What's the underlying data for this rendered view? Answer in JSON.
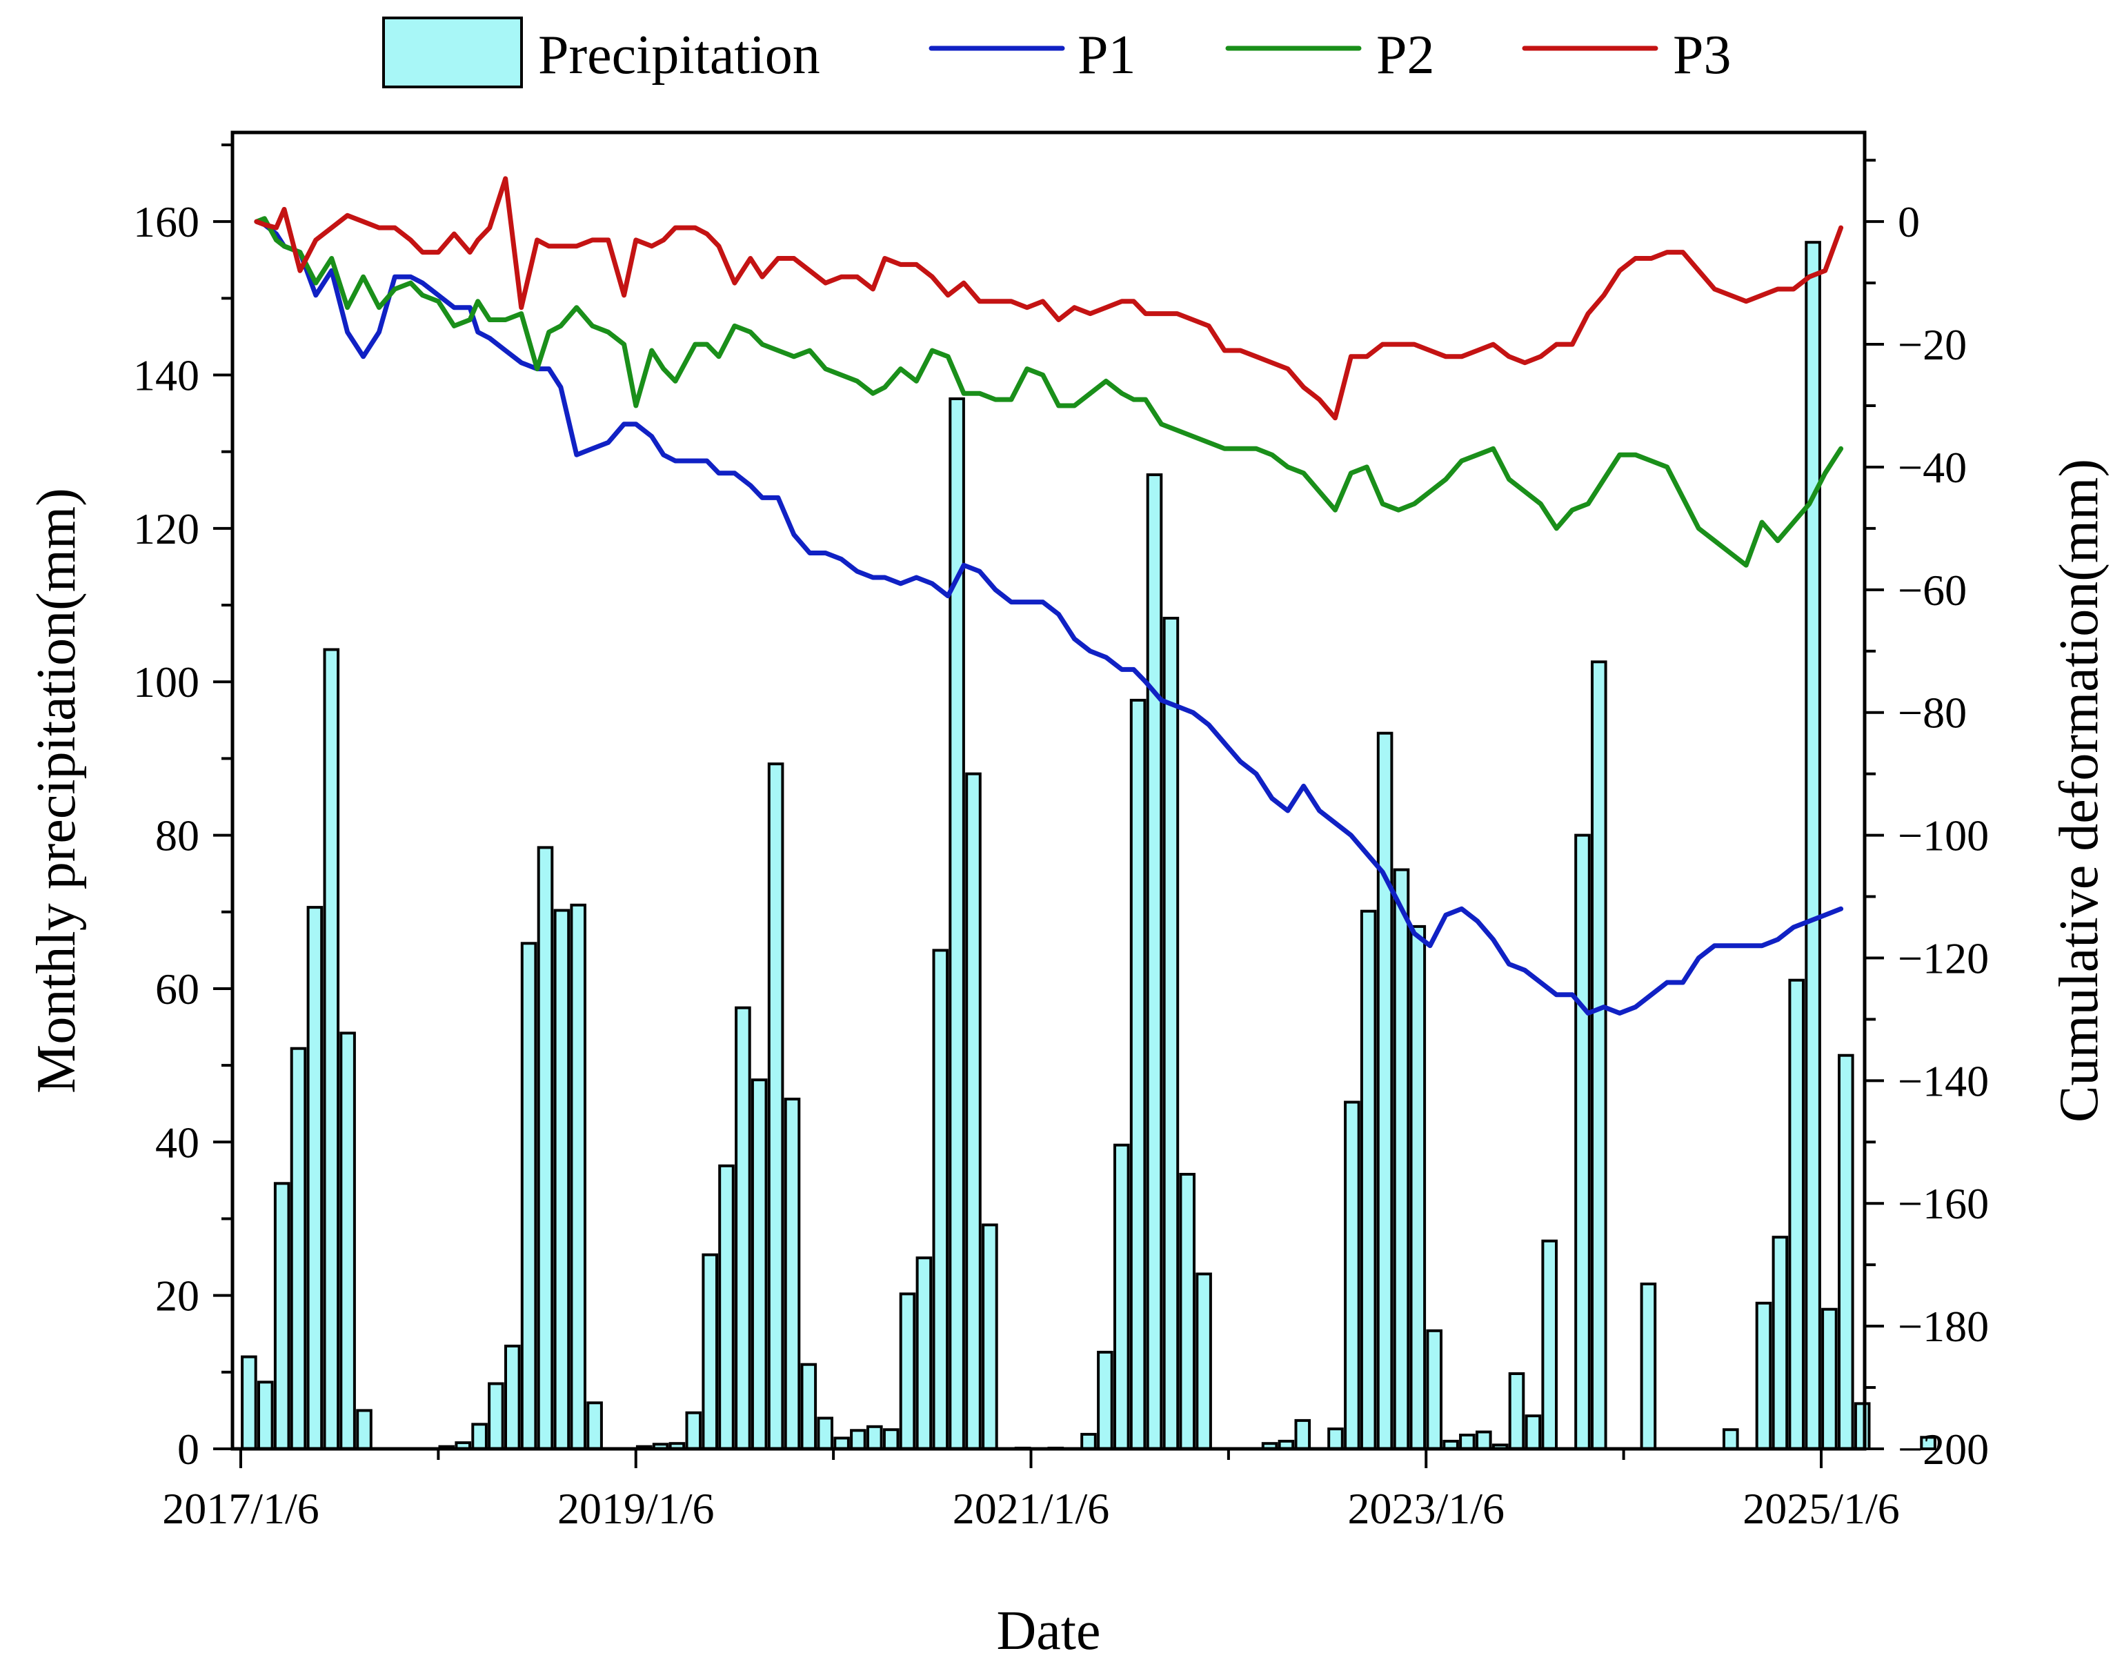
{
  "chart_data": {
    "type": "bar+line",
    "title": "",
    "xlabel": "Date",
    "ylabel_left": "Monthly precipitation(mm)",
    "ylabel_right": "Cumulative deformation(mm)",
    "ylim_left": [
      0,
      170
    ],
    "ylim_right": [
      -200,
      10
    ],
    "x_range_years": [
      2017.0,
      2025.12
    ],
    "x_ticks": [
      {
        "year": 2017.0,
        "label": "2017/1/6"
      },
      {
        "year": 2019.0,
        "label": "2019/1/6"
      },
      {
        "year": 2021.0,
        "label": "2021/1/6"
      },
      {
        "year": 2023.0,
        "label": "2023/1/6"
      },
      {
        "year": 2025.0,
        "label": "2025/1/6"
      }
    ],
    "x_minor_ticks": [
      2018.0,
      2020.0,
      2022.0,
      2024.0
    ],
    "y_left_ticks": [
      0,
      20,
      40,
      60,
      80,
      100,
      120,
      140,
      160
    ],
    "y_left_minor_ticks": [
      10,
      30,
      50,
      70,
      90,
      110,
      130,
      150,
      170
    ],
    "y_right_ticks": [
      0,
      -20,
      -40,
      -60,
      -80,
      -100,
      -120,
      -140,
      -160,
      -180,
      -200
    ],
    "y_right_minor_ticks": [
      10,
      -10,
      -30,
      -50,
      -70,
      -90,
      -110,
      -130,
      -150,
      -170,
      -190
    ],
    "colors": {
      "bar_fill": "#a8f7f7",
      "P1": "#1021c4",
      "P2": "#1a8f1a",
      "P3": "#c41313"
    },
    "legend": [
      {
        "key": "bar",
        "label": "Precipitation"
      },
      {
        "key": "P1",
        "label": "P1"
      },
      {
        "key": "P2",
        "label": "P2"
      },
      {
        "key": "P3",
        "label": "P3"
      }
    ],
    "precipitation": {
      "name": "Precipitation",
      "start_year": 2017.0,
      "values": [
        12.0,
        8.7,
        34.6,
        52.2,
        70.6,
        104.2,
        54.2,
        5.0,
        0,
        0,
        0,
        0,
        0.3,
        0.8,
        3.2,
        8.5,
        13.4,
        65.9,
        78.4,
        70.2,
        70.9,
        6.0,
        0,
        0,
        0.3,
        0.6,
        0.7,
        4.7,
        25.3,
        36.9,
        57.5,
        48.1,
        89.3,
        45.6,
        11.0,
        4.0,
        1.4,
        2.4,
        2.9,
        2.5,
        20.2,
        24.9,
        65.0,
        136.9,
        88.0,
        29.2,
        0,
        0.1,
        0,
        0.1,
        0,
        1.9,
        12.6,
        39.6,
        97.6,
        127.0,
        108.3,
        35.8,
        22.8,
        0,
        0,
        0,
        0.7,
        1.0,
        3.7,
        0,
        2.6,
        45.2,
        70.1,
        93.3,
        75.5,
        68.1,
        15.4,
        1.0,
        1.8,
        2.2,
        0.5,
        9.8,
        4.3,
        27.1,
        0,
        80.0,
        102.6,
        0,
        0,
        21.5,
        0,
        0,
        0,
        0,
        2.5,
        0,
        19.0,
        27.6,
        61.1,
        157.3,
        18.2,
        51.3,
        5.9,
        0,
        0,
        0,
        1.5
      ]
    },
    "series": [
      {
        "name": "P1",
        "x": [
          2017.08,
          2017.12,
          2017.18,
          2017.22,
          2017.3,
          2017.38,
          2017.46,
          2017.54,
          2017.62,
          2017.7,
          2017.78,
          2017.86,
          2017.92,
          2018.0,
          2018.08,
          2018.16,
          2018.2,
          2018.26,
          2018.34,
          2018.42,
          2018.5,
          2018.56,
          2018.62,
          2018.7,
          2018.78,
          2018.86,
          2018.94,
          2019.0,
          2019.08,
          2019.14,
          2019.2,
          2019.3,
          2019.36,
          2019.42,
          2019.5,
          2019.58,
          2019.64,
          2019.72,
          2019.8,
          2019.88,
          2019.96,
          2020.04,
          2020.12,
          2020.2,
          2020.26,
          2020.34,
          2020.42,
          2020.5,
          2020.58,
          2020.66,
          2020.74,
          2020.82,
          2020.9,
          2020.98,
          2021.06,
          2021.14,
          2021.22,
          2021.3,
          2021.38,
          2021.46,
          2021.52,
          2021.58,
          2021.66,
          2021.74,
          2021.82,
          2021.9,
          2021.98,
          2022.06,
          2022.14,
          2022.22,
          2022.3,
          2022.38,
          2022.46,
          2022.54,
          2022.62,
          2022.7,
          2022.78,
          2022.86,
          2022.94,
          2023.02,
          2023.1,
          2023.18,
          2023.26,
          2023.34,
          2023.42,
          2023.5,
          2023.58,
          2023.66,
          2023.74,
          2023.82,
          2023.9,
          2023.98,
          2024.06,
          2024.14,
          2024.22,
          2024.3,
          2024.38,
          2024.46,
          2024.54,
          2024.62,
          2024.7,
          2024.78,
          2024.86,
          2024.94,
          2025.02,
          2025.1
        ],
        "values": [
          0,
          -0.5,
          -2,
          -4,
          -5,
          -12,
          -8,
          -18,
          -22,
          -18,
          -9,
          -9,
          -10,
          -12,
          -14,
          -14,
          -18,
          -19,
          -21,
          -23,
          -24,
          -24,
          -27,
          -38,
          -37,
          -36,
          -33,
          -33,
          -35,
          -38,
          -39,
          -39,
          -39,
          -41,
          -41,
          -43,
          -45,
          -45,
          -51,
          -54,
          -54,
          -55,
          -57,
          -58,
          -58,
          -59,
          -58,
          -59,
          -61,
          -56,
          -57,
          -60,
          -62,
          -62,
          -62,
          -64,
          -68,
          -70,
          -71,
          -73,
          -73,
          -75,
          -78,
          -79,
          -80,
          -82,
          -85,
          -88,
          -90,
          -94,
          -96,
          -92,
          -96,
          -98,
          -100,
          -103,
          -106,
          -111,
          -116,
          -118,
          -113,
          -112,
          -114,
          -117,
          -121,
          -122,
          -124,
          -126,
          -126,
          -129,
          -128,
          -129,
          -128,
          -126,
          -124,
          -124,
          -120,
          -118,
          -118,
          -118,
          -118,
          -117,
          -115,
          -114,
          -113,
          -112
        ]
      },
      {
        "name": "P2",
        "x": [
          2017.08,
          2017.12,
          2017.18,
          2017.22,
          2017.3,
          2017.38,
          2017.46,
          2017.54,
          2017.62,
          2017.7,
          2017.78,
          2017.86,
          2017.92,
          2018.0,
          2018.08,
          2018.16,
          2018.2,
          2018.26,
          2018.34,
          2018.42,
          2018.5,
          2018.56,
          2018.62,
          2018.7,
          2018.78,
          2018.86,
          2018.94,
          2019.0,
          2019.08,
          2019.14,
          2019.2,
          2019.3,
          2019.36,
          2019.42,
          2019.5,
          2019.58,
          2019.64,
          2019.72,
          2019.8,
          2019.88,
          2019.96,
          2020.04,
          2020.12,
          2020.2,
          2020.26,
          2020.34,
          2020.42,
          2020.5,
          2020.58,
          2020.66,
          2020.74,
          2020.82,
          2020.9,
          2020.98,
          2021.06,
          2021.14,
          2021.22,
          2021.3,
          2021.38,
          2021.46,
          2021.52,
          2021.58,
          2021.66,
          2021.74,
          2021.82,
          2021.9,
          2021.98,
          2022.06,
          2022.14,
          2022.22,
          2022.3,
          2022.38,
          2022.46,
          2022.54,
          2022.62,
          2022.7,
          2022.78,
          2022.86,
          2022.94,
          2023.02,
          2023.1,
          2023.18,
          2023.26,
          2023.34,
          2023.42,
          2023.5,
          2023.58,
          2023.66,
          2023.74,
          2023.82,
          2023.9,
          2023.98,
          2024.06,
          2024.14,
          2024.22,
          2024.3,
          2024.38,
          2024.46,
          2024.54,
          2024.62,
          2024.7,
          2024.78,
          2024.86,
          2024.94,
          2025.02,
          2025.1
        ],
        "values": [
          0,
          0.5,
          -3,
          -4,
          -5,
          -10,
          -6,
          -14,
          -9,
          -14,
          -11,
          -10,
          -12,
          -13,
          -17,
          -16,
          -13,
          -16,
          -16,
          -15,
          -24,
          -18,
          -17,
          -14,
          -17,
          -18,
          -20,
          -30,
          -21,
          -24,
          -26,
          -20,
          -20,
          -22,
          -17,
          -18,
          -20,
          -21,
          -22,
          -21,
          -24,
          -25,
          -26,
          -28,
          -27,
          -24,
          -26,
          -21,
          -22,
          -28,
          -28,
          -29,
          -29,
          -24,
          -25,
          -30,
          -30,
          -28,
          -26,
          -28,
          -29,
          -29,
          -33,
          -34,
          -35,
          -36,
          -37,
          -37,
          -37,
          -38,
          -40,
          -41,
          -44,
          -47,
          -41,
          -40,
          -46,
          -47,
          -46,
          -44,
          -42,
          -39,
          -38,
          -37,
          -42,
          -44,
          -46,
          -50,
          -47,
          -46,
          -42,
          -38,
          -38,
          -39,
          -40,
          -45,
          -50,
          -52,
          -54,
          -56,
          -49,
          -52,
          -49,
          -46,
          -41,
          -37
        ]
      },
      {
        "name": "P3",
        "x": [
          2017.08,
          2017.12,
          2017.18,
          2017.22,
          2017.3,
          2017.38,
          2017.46,
          2017.54,
          2017.62,
          2017.7,
          2017.78,
          2017.86,
          2017.92,
          2018.0,
          2018.08,
          2018.16,
          2018.2,
          2018.26,
          2018.34,
          2018.42,
          2018.5,
          2018.56,
          2018.62,
          2018.7,
          2018.78,
          2018.86,
          2018.94,
          2019.0,
          2019.08,
          2019.14,
          2019.2,
          2019.3,
          2019.36,
          2019.42,
          2019.5,
          2019.58,
          2019.64,
          2019.72,
          2019.8,
          2019.88,
          2019.96,
          2020.04,
          2020.12,
          2020.2,
          2020.26,
          2020.34,
          2020.42,
          2020.5,
          2020.58,
          2020.66,
          2020.74,
          2020.82,
          2020.9,
          2020.98,
          2021.06,
          2021.14,
          2021.22,
          2021.3,
          2021.38,
          2021.46,
          2021.52,
          2021.58,
          2021.66,
          2021.74,
          2021.82,
          2021.9,
          2021.98,
          2022.06,
          2022.14,
          2022.22,
          2022.3,
          2022.38,
          2022.46,
          2022.54,
          2022.62,
          2022.7,
          2022.78,
          2022.86,
          2022.94,
          2023.02,
          2023.1,
          2023.18,
          2023.26,
          2023.34,
          2023.42,
          2023.5,
          2023.58,
          2023.66,
          2023.74,
          2023.82,
          2023.9,
          2023.98,
          2024.06,
          2024.14,
          2024.22,
          2024.3,
          2024.38,
          2024.46,
          2024.54,
          2024.62,
          2024.7,
          2024.78,
          2024.86,
          2024.94,
          2025.02,
          2025.1
        ],
        "values": [
          0,
          -0.5,
          -1,
          2,
          -8,
          -3,
          -1,
          1,
          0,
          -1,
          -1,
          -3,
          -5,
          -5,
          -2,
          -5,
          -3,
          -1,
          7,
          -14,
          -3,
          -4,
          -4,
          -4,
          -3,
          -3,
          -12,
          -3,
          -4,
          -3,
          -1,
          -1,
          -2,
          -4,
          -10,
          -6,
          -9,
          -6,
          -6,
          -8,
          -10,
          -9,
          -9,
          -11,
          -6,
          -7,
          -7,
          -9,
          -12,
          -10,
          -13,
          -13,
          -13,
          -14,
          -13,
          -16,
          -14,
          -15,
          -14,
          -13,
          -13,
          -15,
          -15,
          -15,
          -16,
          -17,
          -21,
          -21,
          -22,
          -23,
          -24,
          -27,
          -29,
          -32,
          -22,
          -22,
          -20,
          -20,
          -20,
          -21,
          -22,
          -22,
          -21,
          -20,
          -22,
          -23,
          -22,
          -20,
          -20,
          -15,
          -12,
          -8,
          -6,
          -6,
          -5,
          -5,
          -8,
          -11,
          -12,
          -13,
          -12,
          -11,
          -11,
          -9,
          -8,
          -1
        ]
      }
    ]
  }
}
